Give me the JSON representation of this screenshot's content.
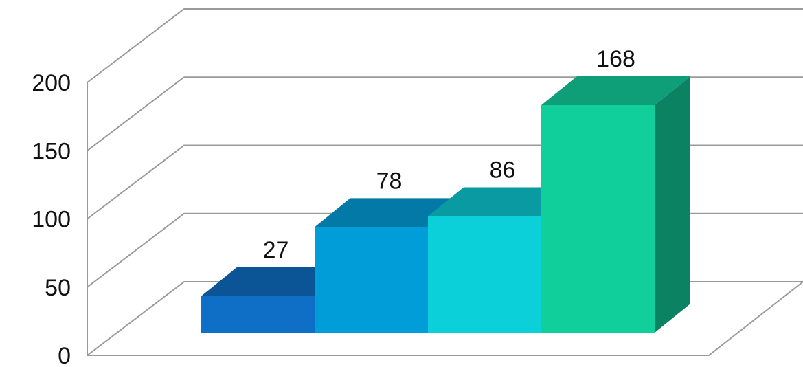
{
  "chart_data": {
    "type": "bar",
    "style": "3d-column",
    "categories": [
      "",
      "",
      "",
      ""
    ],
    "series": [
      {
        "values": [
          27,
          78,
          86,
          168
        ]
      }
    ],
    "data_labels": [
      "27",
      "78",
      "86",
      "168"
    ],
    "ylim": [
      0,
      200
    ],
    "y_ticks": [
      0,
      50,
      100,
      150,
      200
    ],
    "y_tick_labels": [
      "0",
      "50",
      "100",
      "150",
      "200"
    ],
    "grid": true,
    "legend": "none",
    "colors": {
      "bars": [
        {
          "front": "#0F6FC6",
          "top": "#0B5597",
          "side": "#09467d"
        },
        {
          "front": "#009DD9",
          "top": "#0279A6",
          "side": "#026a91"
        },
        {
          "front": "#0BD0D9",
          "top": "#0A9AA2",
          "side": "#08858c"
        },
        {
          "front": "#10CF9B",
          "top": "#0E9E78",
          "side": "#0B8363"
        }
      ],
      "gridline": "#9a9a9a",
      "text": "#111111"
    }
  }
}
